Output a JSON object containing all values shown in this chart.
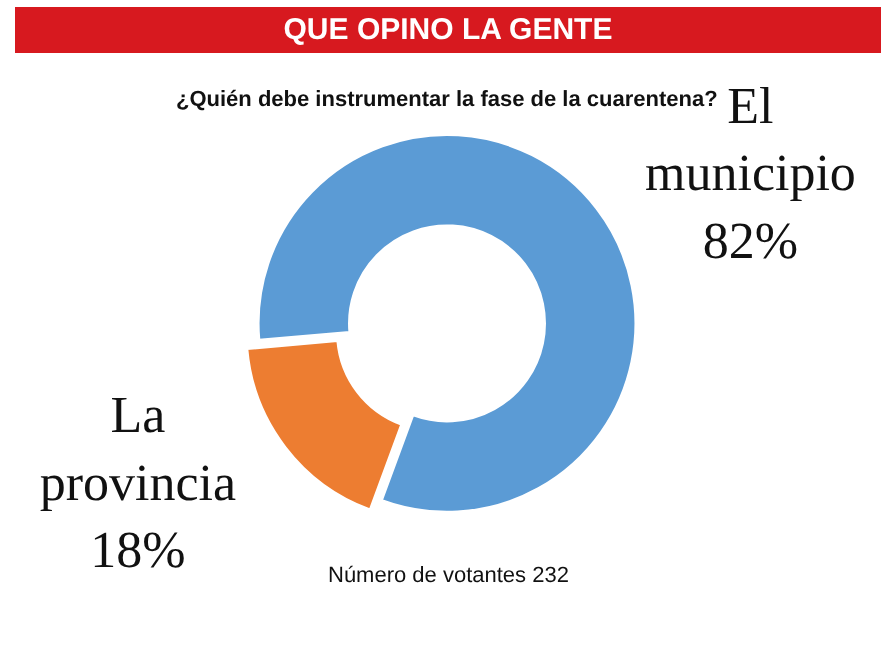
{
  "chart_data": {
    "type": "donut",
    "title": "QUE OPINO LA GENTE",
    "subtitle": "¿Quién debe instrumentar la fase de la cuarentena?",
    "categories": [
      "El municipio",
      "La provincia"
    ],
    "values": [
      82,
      18
    ],
    "value_labels": [
      "82%",
      "18%"
    ],
    "colors": [
      "#5b9bd5",
      "#ed7d31"
    ],
    "annotations": [
      "Número de votantes 232"
    ],
    "legend": false
  }
}
